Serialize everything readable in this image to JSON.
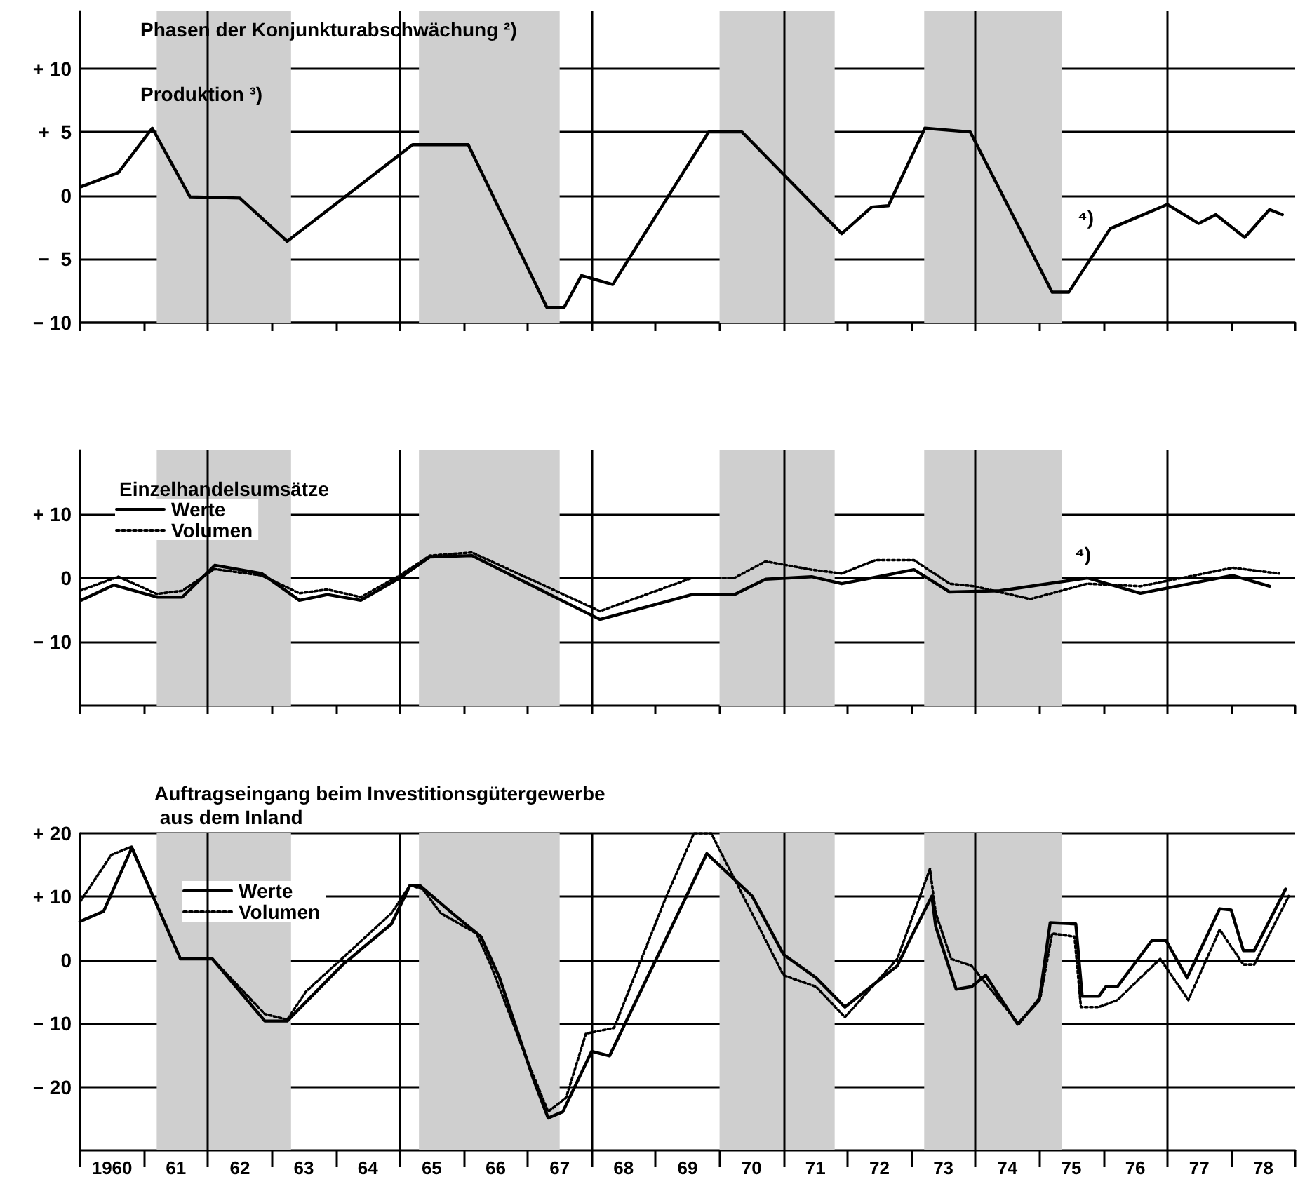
{
  "chart_data": [
    {
      "type": "line",
      "title": "Produktion ³)",
      "annotations": [
        "Phasen der Konjunkturabschwächung ²)",
        "⁴)"
      ],
      "x": [
        1959.52,
        1960.1,
        1960.63,
        1961.22,
        1962.0,
        1962.74,
        1964.7,
        1965.57,
        1966.8,
        1967.07,
        1967.34,
        1967.83,
        1969.33,
        1969.85,
        1971.41,
        1971.88,
        1972.14,
        1972.71,
        1973.42,
        1974.7,
        1974.96,
        1975.61,
        1976.5,
        1976.99,
        1977.26,
        1977.71,
        1978.1,
        1978.3
      ],
      "values": [
        0.7,
        1.8,
        5.3,
        -0.1,
        -0.2,
        -3.6,
        4.0,
        4.0,
        -8.8,
        -8.8,
        -6.3,
        -7.0,
        5.0,
        5.0,
        -3.0,
        -0.9,
        -0.8,
        5.3,
        5.0,
        -7.6,
        -7.6,
        -2.6,
        -0.7,
        -2.2,
        -1.5,
        -3.3,
        -1.1,
        -1.5
      ],
      "color": "#000000",
      "line_style": "solid",
      "marker": "none",
      "xlim": [
        1959.5,
        1978.5
      ],
      "ylim": [
        -10,
        14.5
      ],
      "xticks": [
        {
          "value": 1959.5,
          "label": null
        },
        {
          "value": 1960.5,
          "label": null
        },
        {
          "value": 1961.5,
          "label": null
        },
        {
          "value": 1962.5,
          "label": null
        },
        {
          "value": 1963.5,
          "label": null
        },
        {
          "value": 1964.5,
          "label": null
        },
        {
          "value": 1965.5,
          "label": null
        },
        {
          "value": 1966.5,
          "label": null
        },
        {
          "value": 1967.5,
          "label": null
        },
        {
          "value": 1968.5,
          "label": null
        },
        {
          "value": 1969.5,
          "label": null
        },
        {
          "value": 1970.5,
          "label": null
        },
        {
          "value": 1971.5,
          "label": null
        },
        {
          "value": 1972.5,
          "label": null
        },
        {
          "value": 1973.5,
          "label": null
        },
        {
          "value": 1974.5,
          "label": null
        },
        {
          "value": 1975.5,
          "label": null
        },
        {
          "value": 1976.5,
          "label": null
        },
        {
          "value": 1977.5,
          "label": null
        },
        {
          "value": 1978.5,
          "label": null
        }
      ],
      "yticks": [
        {
          "value": 10,
          "label": "+ 10"
        },
        {
          "value": 5,
          "label": "+  5"
        },
        {
          "value": 0,
          "label": "0"
        },
        {
          "value": -5,
          "label": "−  5"
        },
        {
          "value": -10,
          "label": "− 10"
        }
      ],
      "grid": "y",
      "tick_labels": "y",
      "bands": [
        {
          "axis": "x",
          "from": 1960.7,
          "to": 1962.8,
          "color": "#cfcfcf"
        },
        {
          "axis": "x",
          "from": 1964.8,
          "to": 1967.0,
          "color": "#cfcfcf"
        },
        {
          "axis": "x",
          "from": 1969.5,
          "to": 1971.3,
          "color": "#cfcfcf"
        },
        {
          "axis": "x",
          "from": 1972.7,
          "to": 1974.85,
          "color": "#cfcfcf"
        }
      ],
      "ref_lines": [
        {
          "axis": "x",
          "value": 1961.5
        },
        {
          "axis": "x",
          "value": 1964.5
        },
        {
          "axis": "x",
          "value": 1967.5
        },
        {
          "axis": "x",
          "value": 1970.5
        },
        {
          "axis": "x",
          "value": 1973.5
        },
        {
          "axis": "x",
          "value": 1976.5
        }
      ]
    },
    {
      "type": "line",
      "legend_title": "Einzelhandelsumsätze",
      "legend": "top left",
      "annotations": [
        "⁴)"
      ],
      "series": [
        {
          "name": "Werte",
          "color": "#000000",
          "line_style": "solid",
          "x": [
            1959.52,
            1960.03,
            1960.71,
            1961.1,
            1961.61,
            1962.34,
            1962.93,
            1963.37,
            1963.89,
            1964.5,
            1964.97,
            1965.63,
            1967.63,
            1969.07,
            1969.73,
            1970.22,
            1970.94,
            1971.41,
            1972.54,
            1973.1,
            1973.88,
            1975.25,
            1976.08,
            1977.52,
            1978.1
          ],
          "values": [
            -3.5,
            -1.1,
            -3.0,
            -3.0,
            2.0,
            0.7,
            -3.5,
            -2.6,
            -3.5,
            0,
            3.3,
            3.5,
            -6.5,
            -2.6,
            -2.6,
            -0.2,
            0.2,
            -0.9,
            1.3,
            -2.2,
            -2.0,
            0,
            -2.4,
            0.4,
            -1.3
          ]
        },
        {
          "name": "Volumen",
          "color": "#000000",
          "line_style": "dotted",
          "x": [
            1959.5,
            1960.1,
            1960.7,
            1961.1,
            1961.6,
            1962.34,
            1962.93,
            1963.37,
            1963.89,
            1964.5,
            1964.97,
            1965.63,
            1967.63,
            1969.07,
            1969.73,
            1970.22,
            1970.94,
            1971.41,
            1971.94,
            1972.54,
            1973.1,
            1973.48,
            1974.36,
            1975.25,
            1976.08,
            1977.52,
            1978.25
          ],
          "values": [
            -2.0,
            0.2,
            -2.5,
            -2.0,
            1.4,
            0.4,
            -2.4,
            -1.8,
            -3.0,
            0.4,
            3.5,
            4.0,
            -5.2,
            0,
            0,
            2.6,
            1.3,
            0.7,
            2.8,
            2.8,
            -0.9,
            -1.3,
            -3.3,
            -0.9,
            -1.3,
            1.6,
            0.7
          ]
        }
      ],
      "marker": "none",
      "xlim": [
        1959.5,
        1978.5
      ],
      "ylim": [
        -20,
        20
      ],
      "xticks": [
        {
          "value": 1959.5,
          "label": null
        },
        {
          "value": 1960.5,
          "label": null
        },
        {
          "value": 1961.5,
          "label": null
        },
        {
          "value": 1962.5,
          "label": null
        },
        {
          "value": 1963.5,
          "label": null
        },
        {
          "value": 1964.5,
          "label": null
        },
        {
          "value": 1965.5,
          "label": null
        },
        {
          "value": 1966.5,
          "label": null
        },
        {
          "value": 1967.5,
          "label": null
        },
        {
          "value": 1968.5,
          "label": null
        },
        {
          "value": 1969.5,
          "label": null
        },
        {
          "value": 1970.5,
          "label": null
        },
        {
          "value": 1971.5,
          "label": null
        },
        {
          "value": 1972.5,
          "label": null
        },
        {
          "value": 1973.5,
          "label": null
        },
        {
          "value": 1974.5,
          "label": null
        },
        {
          "value": 1975.5,
          "label": null
        },
        {
          "value": 1976.5,
          "label": null
        },
        {
          "value": 1977.5,
          "label": null
        },
        {
          "value": 1978.5,
          "label": null
        }
      ],
      "yticks": [
        {
          "value": 10,
          "label": "+ 10"
        },
        {
          "value": 0,
          "label": "0"
        },
        {
          "value": -10,
          "label": "− 10"
        }
      ],
      "grid": "y",
      "tick_labels": "y",
      "bands": [
        {
          "axis": "x",
          "from": 1960.7,
          "to": 1962.8,
          "color": "#cfcfcf"
        },
        {
          "axis": "x",
          "from": 1964.8,
          "to": 1967.0,
          "color": "#cfcfcf"
        },
        {
          "axis": "x",
          "from": 1969.5,
          "to": 1971.3,
          "color": "#cfcfcf"
        },
        {
          "axis": "x",
          "from": 1972.7,
          "to": 1974.85,
          "color": "#cfcfcf"
        }
      ],
      "ref_lines": [
        {
          "axis": "x",
          "value": 1961.5
        },
        {
          "axis": "x",
          "value": 1964.5
        },
        {
          "axis": "x",
          "value": 1967.5
        },
        {
          "axis": "x",
          "value": 1970.5
        },
        {
          "axis": "x",
          "value": 1973.5
        },
        {
          "axis": "x",
          "value": 1976.5
        }
      ]
    },
    {
      "type": "line",
      "legend_title": "Auftragseingang beim Investitionsgütergewerbe aus dem Inland",
      "legend": "top left",
      "series": [
        {
          "name": "Werte",
          "color": "#000000",
          "line_style": "solid",
          "x": [
            1959.5,
            1959.87,
            1960.31,
            1961.07,
            1961.57,
            1962.39,
            1962.74,
            1963.61,
            1964.37,
            1964.66,
            1964.81,
            1965.32,
            1965.77,
            1966.06,
            1966.59,
            1966.82,
            1967.05,
            1967.5,
            1967.78,
            1968.65,
            1969.3,
            1970.01,
            1970.5,
            1971.01,
            1971.46,
            1972.28,
            1972.5,
            1972.82,
            1972.88,
            1973.2,
            1973.44,
            1973.66,
            1974.16,
            1974.5,
            1974.67,
            1975.07,
            1975.17,
            1975.43,
            1975.54,
            1975.72,
            1976.26,
            1976.48,
            1976.81,
            1977.32,
            1977.5,
            1977.69,
            1977.86,
            1978.35
          ],
          "values": [
            6.1,
            7.7,
            17.7,
            0.2,
            0.2,
            -9.6,
            -9.6,
            -0.7,
            5.7,
            11.8,
            11.8,
            7.4,
            3.7,
            -2.8,
            -18.8,
            -24.9,
            -23.9,
            -14.4,
            -15.1,
            3.1,
            16.8,
            10.1,
            0.9,
            -2.8,
            -7.4,
            -0.9,
            3.7,
            10.1,
            5.3,
            -4.6,
            -4.2,
            -2.4,
            -10.1,
            -6.3,
            5.9,
            5.7,
            -5.7,
            -5.7,
            -4.2,
            -4.2,
            3.1,
            3.1,
            -2.8,
            8.1,
            7.9,
            1.5,
            1.5,
            11.2
          ]
        },
        {
          "name": "Volumen",
          "color": "#000000",
          "line_style": "dotted",
          "x": [
            1959.5,
            1959.99,
            1960.31,
            1961.07,
            1961.57,
            1962.39,
            1962.74,
            1963.03,
            1964.37,
            1964.66,
            1964.86,
            1965.14,
            1965.7,
            1965.92,
            1966.5,
            1966.82,
            1967.1,
            1967.41,
            1967.85,
            1968.65,
            1969.1,
            1969.37,
            1970.5,
            1971.01,
            1971.46,
            1972.28,
            1972.79,
            1972.88,
            1973.12,
            1973.44,
            1974.18,
            1974.52,
            1974.7,
            1975.05,
            1975.15,
            1975.43,
            1975.72,
            1976.39,
            1976.83,
            1977.32,
            1977.69,
            1977.86,
            1978.4
          ],
          "values": [
            9.2,
            16.6,
            17.9,
            0.2,
            0.2,
            -8.5,
            -9.4,
            -5.0,
            7.4,
            11.8,
            11.2,
            7.4,
            4.2,
            -0.7,
            -16.0,
            -23.9,
            -21.7,
            -11.6,
            -10.7,
            9.6,
            20,
            20,
            -2.4,
            -4.2,
            -9.0,
            0.2,
            14.4,
            7.4,
            0.2,
            -0.9,
            -10.1,
            -5.7,
            4.2,
            3.7,
            -7.4,
            -7.4,
            -6.3,
            0.2,
            -6.3,
            4.8,
            -0.7,
            -0.7,
            10.1
          ]
        }
      ],
      "marker": "none",
      "xlim": [
        1959.5,
        1978.5
      ],
      "ylim": [
        -30,
        20
      ],
      "xticks": [
        {
          "value": 1959.5,
          "label": null
        },
        {
          "value": 1960,
          "label": "1960"
        },
        {
          "value": 1960.5,
          "label": null
        },
        {
          "value": 1961,
          "label": "61"
        },
        {
          "value": 1961.5,
          "label": null
        },
        {
          "value": 1962,
          "label": "62"
        },
        {
          "value": 1962.5,
          "label": null
        },
        {
          "value": 1963,
          "label": "63"
        },
        {
          "value": 1963.5,
          "label": null
        },
        {
          "value": 1964,
          "label": "64"
        },
        {
          "value": 1964.5,
          "label": null
        },
        {
          "value": 1965,
          "label": "65"
        },
        {
          "value": 1965.5,
          "label": null
        },
        {
          "value": 1966,
          "label": "66"
        },
        {
          "value": 1966.5,
          "label": null
        },
        {
          "value": 1967,
          "label": "67"
        },
        {
          "value": 1967.5,
          "label": null
        },
        {
          "value": 1968,
          "label": "68"
        },
        {
          "value": 1968.5,
          "label": null
        },
        {
          "value": 1969,
          "label": "69"
        },
        {
          "value": 1969.5,
          "label": null
        },
        {
          "value": 1970,
          "label": "70"
        },
        {
          "value": 1970.5,
          "label": null
        },
        {
          "value": 1971,
          "label": "71"
        },
        {
          "value": 1971.5,
          "label": null
        },
        {
          "value": 1972,
          "label": "72"
        },
        {
          "value": 1972.5,
          "label": null
        },
        {
          "value": 1973,
          "label": "73"
        },
        {
          "value": 1973.5,
          "label": null
        },
        {
          "value": 1974,
          "label": "74"
        },
        {
          "value": 1974.5,
          "label": null
        },
        {
          "value": 1975,
          "label": "75"
        },
        {
          "value": 1975.5,
          "label": null
        },
        {
          "value": 1976,
          "label": "76"
        },
        {
          "value": 1976.5,
          "label": null
        },
        {
          "value": 1977,
          "label": "77"
        },
        {
          "value": 1977.5,
          "label": null
        },
        {
          "value": 1978,
          "label": "78"
        },
        {
          "value": 1978.5,
          "label": null
        }
      ],
      "yticks": [
        {
          "value": 20,
          "label": "+ 20"
        },
        {
          "value": 10,
          "label": "+ 10"
        },
        {
          "value": 0,
          "label": "0"
        },
        {
          "value": -10,
          "label": "− 10"
        },
        {
          "value": -20,
          "label": "− 20"
        }
      ],
      "grid": "y",
      "bands": [
        {
          "axis": "x",
          "from": 1960.7,
          "to": 1962.8,
          "color": "#cfcfcf"
        },
        {
          "axis": "x",
          "from": 1964.8,
          "to": 1967.0,
          "color": "#cfcfcf"
        },
        {
          "axis": "x",
          "from": 1969.5,
          "to": 1971.3,
          "color": "#cfcfcf"
        },
        {
          "axis": "x",
          "from": 1972.7,
          "to": 1974.85,
          "color": "#cfcfcf"
        }
      ],
      "ref_lines": [
        {
          "axis": "x",
          "value": 1961.5
        },
        {
          "axis": "x",
          "value": 1964.5
        },
        {
          "axis": "x",
          "value": 1967.5
        },
        {
          "axis": "x",
          "value": 1970.5
        },
        {
          "axis": "x",
          "value": 1973.5
        },
        {
          "axis": "x",
          "value": 1976.5
        }
      ]
    }
  ]
}
